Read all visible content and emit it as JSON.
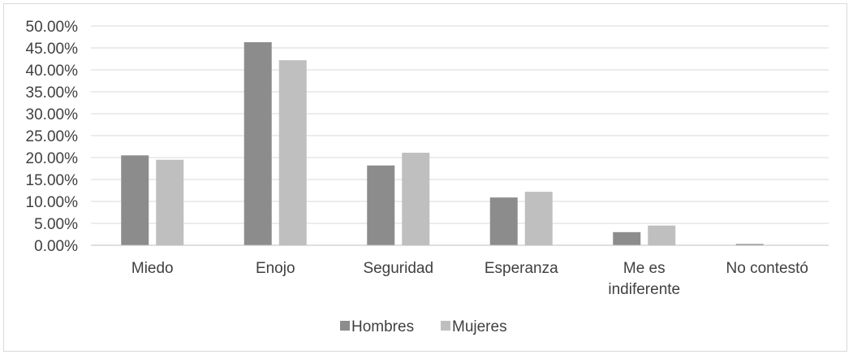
{
  "chart_data": {
    "type": "bar",
    "title": "",
    "xlabel": "",
    "ylabel": "",
    "categories": [
      [
        "Miedo"
      ],
      [
        "Enojo"
      ],
      [
        "Seguridad"
      ],
      [
        "Esperanza"
      ],
      [
        "Me es",
        "indiferente"
      ],
      [
        "No contestó"
      ]
    ],
    "series": [
      {
        "name": "Hombres",
        "color": "#8c8c8c",
        "values": [
          20.5,
          46.3,
          18.2,
          10.9,
          3.0,
          0.3
        ]
      },
      {
        "name": "Mujeres",
        "color": "#bfbfbf",
        "values": [
          19.5,
          42.2,
          21.1,
          12.2,
          4.5,
          0.0
        ]
      }
    ],
    "ylim": [
      0,
      50
    ],
    "yticks": [
      "0.00%",
      "5.00%",
      "10.00%",
      "15.00%",
      "20.00%",
      "25.00%",
      "30.00%",
      "35.00%",
      "40.00%",
      "45.00%",
      "50.00%"
    ],
    "grid": true,
    "gridline_color": "#d9d9d9",
    "legend_position": "bottom"
  }
}
